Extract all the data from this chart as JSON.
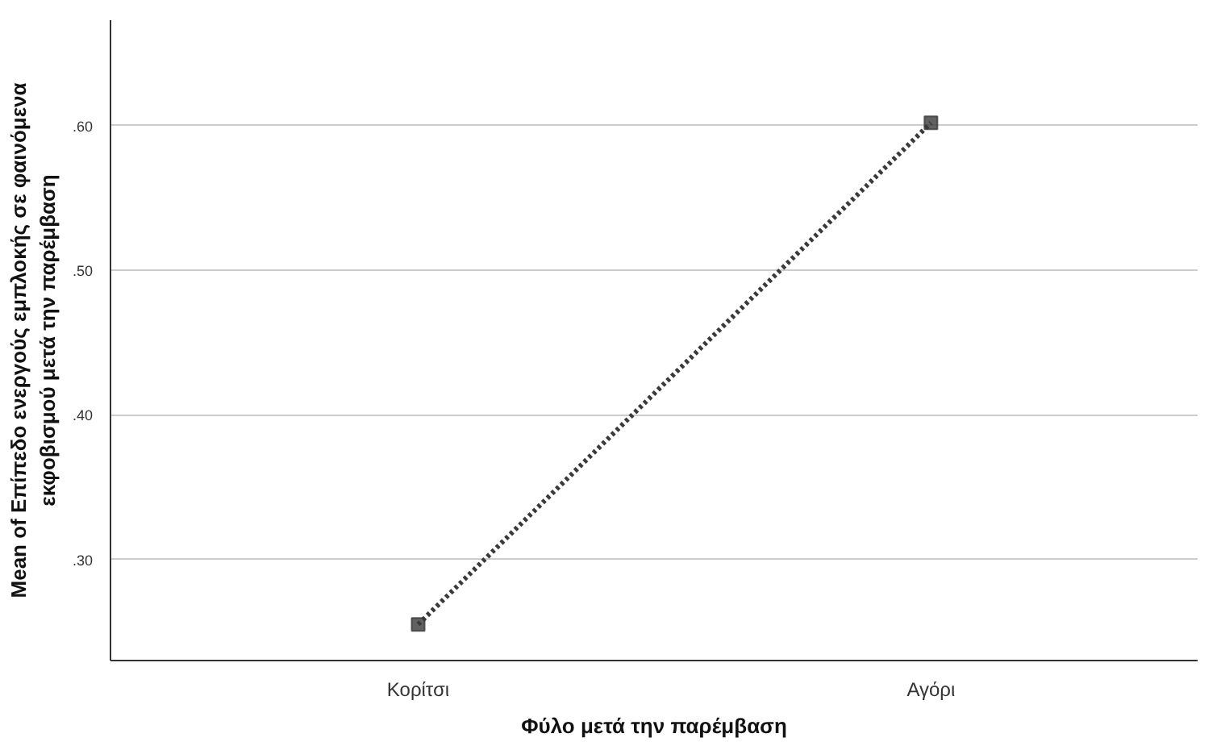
{
  "chart_data": {
    "type": "line",
    "xlabel": "Φύλο μετά την παρέμβαση",
    "ylabel": "Mean of Επίπεδο ενεργούς εμπλοκής σε φαινόμενα\nεκφοβισμού μετά την παρέμβαση",
    "categories": [
      "Κορίτσι",
      "Αγόρι"
    ],
    "series": [
      {
        "color": "#3a3a3a",
        "values": [
          0.255,
          0.602
        ]
      }
    ],
    "ylim": [
      0.23,
      0.673
    ],
    "yticks": [
      {
        "value": 0.3,
        "label": ".30"
      },
      {
        "value": 0.4,
        "label": ".40"
      },
      {
        "value": 0.5,
        "label": ".50"
      },
      {
        "value": 0.6,
        "label": ".60"
      }
    ],
    "grid": "y",
    "marker": "square",
    "line_style": "dotted"
  }
}
